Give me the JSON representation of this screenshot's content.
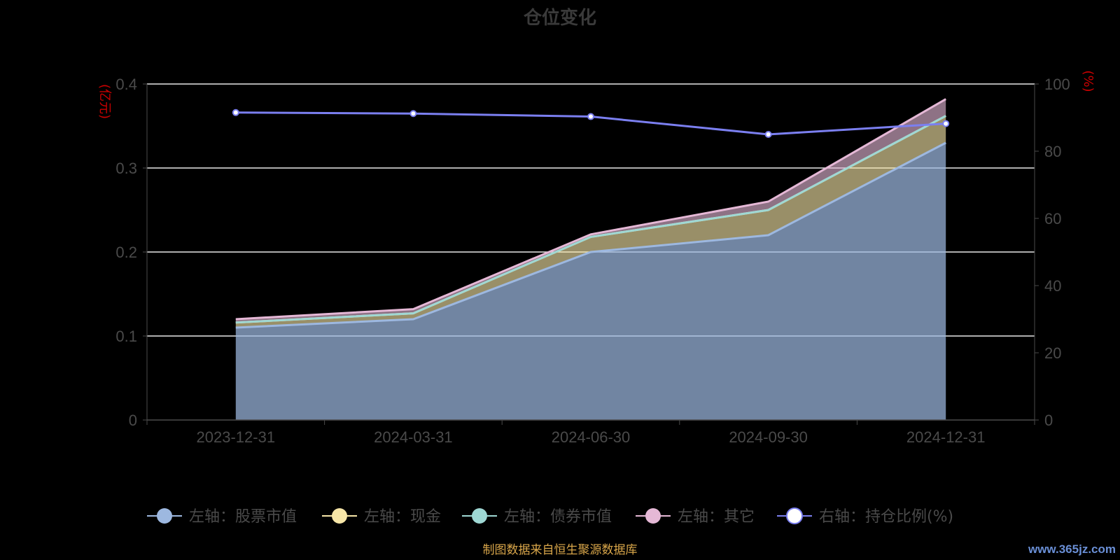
{
  "chart_data": {
    "type": "area",
    "title": "仓位变化",
    "categories": [
      "2023-12-31",
      "2024-03-31",
      "2024-06-30",
      "2024-09-30",
      "2024-12-31"
    ],
    "left_axis": {
      "unit_label": "(亿元)",
      "ylim": [
        0,
        0.4
      ],
      "ticks": [
        "0",
        "0.1",
        "0.2",
        "0.3",
        "0.4"
      ]
    },
    "right_axis": {
      "unit_label": "(%)",
      "ylim": [
        0,
        100
      ],
      "ticks": [
        "0",
        "20",
        "40",
        "60",
        "80",
        "100"
      ]
    },
    "series": [
      {
        "name": "左轴：股票市值",
        "axis": "left",
        "stacked": true,
        "values": [
          0.11,
          0.12,
          0.2,
          0.22,
          0.33
        ],
        "color": "#9db8e0"
      },
      {
        "name": "左轴：现金",
        "axis": "left",
        "stacked": true,
        "values": [
          0.006,
          0.007,
          0.018,
          0.03,
          0.032
        ],
        "color": "#f7e6a8"
      },
      {
        "name": "左轴：债券市值",
        "axis": "left",
        "stacked": true,
        "values": [
          0,
          0,
          0,
          0,
          0
        ],
        "color": "#9fd8d4"
      },
      {
        "name": "左轴：其它",
        "axis": "left",
        "stacked": true,
        "values": [
          0.004,
          0.005,
          0.003,
          0.01,
          0.02
        ],
        "color": "#e5b8d6"
      },
      {
        "name": "右轴：持仓比例(%)",
        "axis": "right",
        "type": "line",
        "values": [
          91.5,
          91.2,
          90.3,
          85.0,
          88.2
        ],
        "color": "#7b7ff0"
      }
    ],
    "grid": true,
    "legend_position": "bottom"
  },
  "footer": {
    "source": "制图数据来自恒生聚源数据库",
    "watermark": "www.365jz.com"
  },
  "colors": {
    "background": "#000000",
    "title": "#3a3a3a",
    "axis_text": "#4a4a4a",
    "unit_label": "#cc0000",
    "source": "#d9a64a",
    "watermark": "#6a8fd6"
  }
}
